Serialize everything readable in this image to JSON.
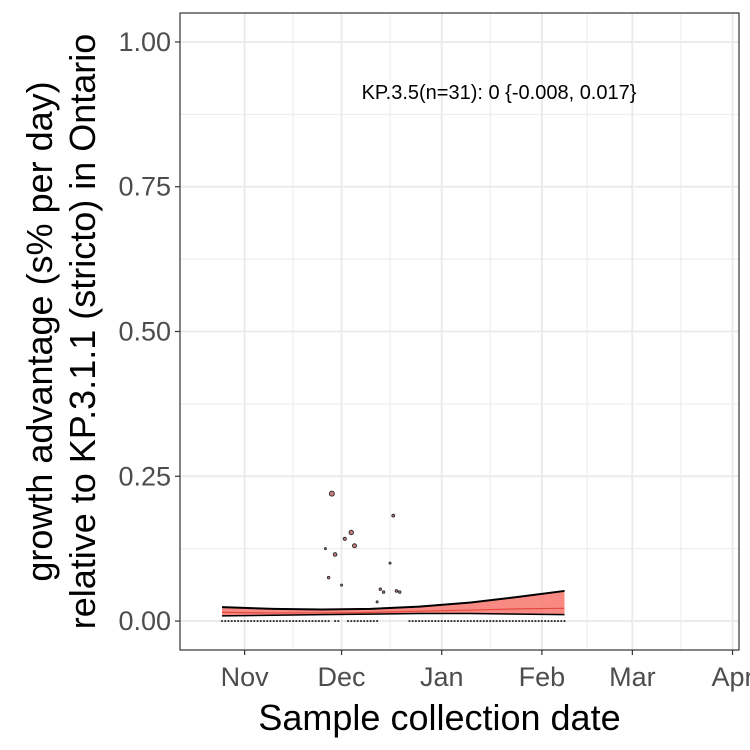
{
  "chart_data": {
    "type": "scatter",
    "title": "",
    "xlabel": "Sample collection date",
    "ylabel_line1": "growth advantage (s% per day)",
    "ylabel_line2": "relative to KP.3.1.1 (stricto) in Ontario",
    "annotation": "KP.3.5(n=31): 0 {-0.008, 0.017}",
    "x_ticks": [
      {
        "label": "Nov",
        "date": "2024-11-01"
      },
      {
        "label": "Dec",
        "date": "2024-12-01"
      },
      {
        "label": "Jan",
        "date": "2025-01-01"
      },
      {
        "label": "Feb",
        "date": "2025-02-01"
      },
      {
        "label": "Mar",
        "date": "2025-03-01"
      },
      {
        "label": "Apr",
        "date": "2025-04-01"
      }
    ],
    "y_ticks": [
      {
        "label": "0.00",
        "value": 0
      },
      {
        "label": "0.25",
        "value": 0.25
      },
      {
        "label": "0.50",
        "value": 0.5
      },
      {
        "label": "0.75",
        "value": 0.75
      },
      {
        "label": "1.00",
        "value": 1.0
      }
    ],
    "xlim": [
      "2024-10-12",
      "2025-04-03"
    ],
    "ylim": [
      -0.05,
      1.05
    ],
    "grid": true,
    "colors": {
      "ribbon": "#f8766d",
      "fit_line": "#f8766d",
      "bound_line": "#000000",
      "point_fill": "#c97b7b",
      "point_stroke": "#333333",
      "grid": "#ebebeb",
      "panel_border": "#333333"
    },
    "fit": {
      "x": [
        "2024-10-25",
        "2024-11-10",
        "2024-11-25",
        "2024-12-10",
        "2024-12-25",
        "2025-01-10",
        "2025-01-25",
        "2025-02-08"
      ],
      "y": [
        0.015,
        0.014,
        0.014,
        0.015,
        0.017,
        0.019,
        0.021,
        0.022
      ],
      "lower": [
        0.009,
        0.01,
        0.011,
        0.012,
        0.013,
        0.013,
        0.012,
        0.011
      ],
      "upper": [
        0.024,
        0.021,
        0.02,
        0.021,
        0.025,
        0.032,
        0.042,
        0.052
      ]
    },
    "points": [
      {
        "date": "2024-11-26",
        "value": 0.125,
        "size": 1.0
      },
      {
        "date": "2024-11-28",
        "value": 0.22,
        "size": 2.5
      },
      {
        "date": "2024-11-29",
        "value": 0.115,
        "size": 1.8
      },
      {
        "date": "2024-11-27",
        "value": 0.075,
        "size": 1.2
      },
      {
        "date": "2024-12-01",
        "value": 0.062,
        "size": 1.0
      },
      {
        "date": "2024-12-02",
        "value": 0.142,
        "size": 1.6
      },
      {
        "date": "2024-12-04",
        "value": 0.153,
        "size": 2.2
      },
      {
        "date": "2024-12-05",
        "value": 0.13,
        "size": 2.0
      },
      {
        "date": "2024-12-12",
        "value": 0.033,
        "size": 1.0
      },
      {
        "date": "2024-12-13",
        "value": 0.055,
        "size": 1.2
      },
      {
        "date": "2024-12-14",
        "value": 0.05,
        "size": 1.2
      },
      {
        "date": "2024-12-16",
        "value": 0.1,
        "size": 1.0
      },
      {
        "date": "2024-12-17",
        "value": 0.182,
        "size": 1.4
      },
      {
        "date": "2024-12-18",
        "value": 0.052,
        "size": 1.3
      },
      {
        "date": "2024-12-19",
        "value": 0.05,
        "size": 1.2
      }
    ],
    "zero_points": {
      "start": "2024-10-25",
      "end": "2025-02-08",
      "gaps": [
        "2024-12-01",
        "2024-12-02",
        "2024-12-13",
        "2024-12-14",
        "2024-12-15",
        "2024-12-16",
        "2024-12-17",
        "2024-12-18",
        "2024-12-19",
        "2024-12-20",
        "2024-12-21",
        "2024-11-28"
      ]
    }
  }
}
